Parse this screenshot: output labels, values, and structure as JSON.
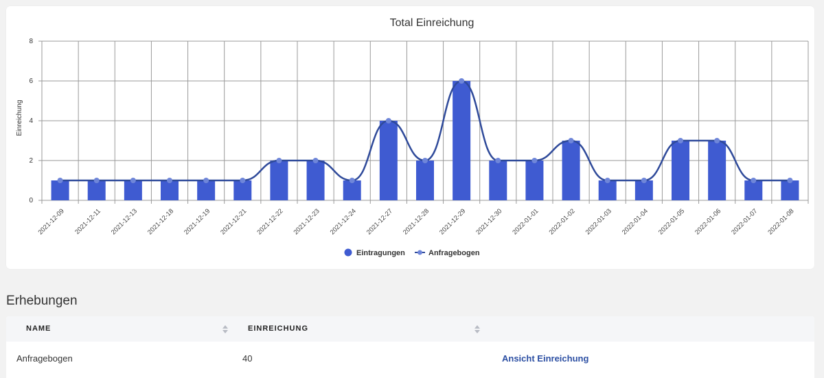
{
  "chart_data": {
    "type": "bar",
    "title": "Total Einreichung",
    "ylabel": "Einreichung",
    "xlabel": "",
    "ylim": [
      0,
      8
    ],
    "yticks": [
      0,
      2,
      4,
      6,
      8
    ],
    "grid": true,
    "legend_position": "bottom",
    "categories": [
      "2021-12-09",
      "2021-12-11",
      "2021-12-13",
      "2021-12-18",
      "2021-12-19",
      "2021-12-21",
      "2021-12-22",
      "2021-12-23",
      "2021-12-24",
      "2021-12-27",
      "2021-12-28",
      "2021-12-29",
      "2021-12-30",
      "2022-01-01",
      "2022-01-02",
      "2022-01-03",
      "2022-01-04",
      "2022-01-05",
      "2022-01-06",
      "2022-01-07",
      "2022-01-08"
    ],
    "series": [
      {
        "name": "Eintragungen",
        "type": "bar",
        "color": "#3f5bd1",
        "values": [
          1,
          1,
          1,
          1,
          1,
          1,
          2,
          2,
          1,
          4,
          2,
          6,
          2,
          2,
          3,
          1,
          1,
          3,
          3,
          1,
          1
        ]
      },
      {
        "name": "Anfragebogen",
        "type": "line",
        "color": "#2f4a9a",
        "values": [
          1,
          1,
          1,
          1,
          1,
          1,
          2,
          2,
          1,
          4,
          2,
          6,
          2,
          2,
          3,
          1,
          1,
          3,
          3,
          1,
          1
        ]
      }
    ]
  },
  "section_title": "Erhebungen",
  "table": {
    "headers": [
      "NAME",
      "EINREICHUNG"
    ],
    "rows": [
      {
        "name": "Anfragebogen",
        "count": "40",
        "action": "Ansicht Einreichung"
      }
    ]
  }
}
